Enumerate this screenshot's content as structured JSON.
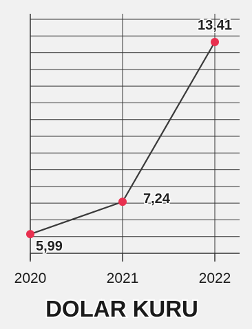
{
  "chart_data": {
    "type": "line",
    "title": "DOLAR KURU",
    "categories": [
      "2020",
      "2021",
      "2022"
    ],
    "series": [
      {
        "values": [
          5.99,
          7.24,
          13.41
        ],
        "labels": [
          "5,99",
          "7,24",
          "13,41"
        ],
        "color": "#e8304f"
      }
    ],
    "ylim": [
      5.25,
      14.5
    ],
    "grid": "horizontal-and-vertical",
    "line_color": "#3a3a3a"
  }
}
